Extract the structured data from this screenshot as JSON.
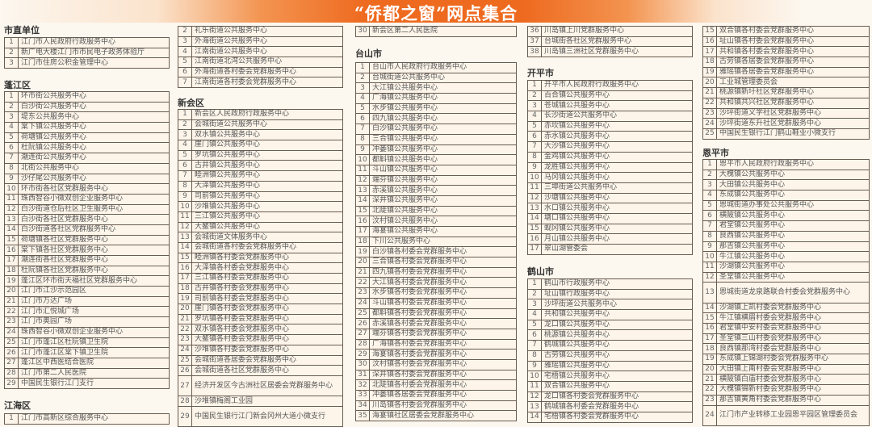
{
  "title": "“侨都之窗”网点集合",
  "columns": [
    [
      {
        "heading": "市直单位",
        "rows": [
          [
            "1",
            "江门市人民政府行政服务中心"
          ],
          [
            "2",
            "新广电大楼江门市市民电子政务体验厅"
          ],
          [
            "3",
            "江门市住房公积金管理中心"
          ]
        ]
      },
      {
        "heading": "蓬江区",
        "rows": [
          [
            "1",
            "环市街公共服务中心"
          ],
          [
            "2",
            "白沙街公共服务中心"
          ],
          [
            "3",
            "堤东公共服务中心"
          ],
          [
            "4",
            "棠下镇公共服务中心"
          ],
          [
            "5",
            "荷塘镇公共服务中心"
          ],
          [
            "6",
            "杜阮镇公共服务中心"
          ],
          [
            "7",
            "潮连街公共服务中心"
          ],
          [
            "8",
            "北街公共服务中心"
          ],
          [
            "9",
            "沙仔尾公共服务中心"
          ],
          [
            "10",
            "环市街各社区党群服务中心"
          ],
          [
            "11",
            "珠西智谷小微双创企业服务中心"
          ],
          [
            "12",
            "白沙街道仓后社区卫生服务中心"
          ],
          [
            "13",
            "白沙街各社区党群服务中心"
          ],
          [
            "14",
            "白沙街道各社区党群服务中心"
          ],
          [
            "15",
            "荷塘镇各社区党群服务中心"
          ],
          [
            "16",
            "棠下镇各社区党群服务中心"
          ],
          [
            "17",
            "潮连街各社区党群服务中心"
          ],
          [
            "18",
            "杜阮镇各社区党群服务中心"
          ],
          [
            "19",
            "蓬江区环市街天福社区党群服务中心"
          ],
          [
            "20",
            "江门市江沙示范园区"
          ],
          [
            "21",
            "江门市万达广场"
          ],
          [
            "22",
            "江门市汇悦城广场"
          ],
          [
            "23",
            "江门市奥园广场"
          ],
          [
            "24",
            "珠西智谷小微双创企业服务中心"
          ],
          [
            "25",
            "江门市蓬江区杜阮镇卫生院"
          ],
          [
            "26",
            "江门市蓬江区棠下镇卫生院"
          ],
          [
            "27",
            "蓬江区中西医结合医院"
          ],
          [
            "28",
            "江门市第二人民医院"
          ],
          [
            "29",
            "中国民生银行江门支行"
          ]
        ]
      },
      {
        "heading": "江海区",
        "rows": [
          [
            "1",
            "江门市高新区综合服务中心"
          ]
        ]
      }
    ],
    [
      {
        "heading": "",
        "rows": [
          [
            "2",
            "礼乐街道公共服务中心"
          ],
          [
            "3",
            "外海街道公共服务中心"
          ],
          [
            "4",
            "江南街道公共服务中心"
          ],
          [
            "5",
            "江南街道北湾公共服务中心"
          ],
          [
            "6",
            "外海街道各村委会党群服务中心"
          ],
          [
            "7",
            "江南街道各村委会党群服务中心"
          ]
        ]
      },
      {
        "heading": "新会区",
        "rows": [
          [
            "1",
            "新会区人民政府行政服务中心"
          ],
          [
            "2",
            "会城街道公共服务中心"
          ],
          [
            "3",
            "双水镇公共服务中心"
          ],
          [
            "4",
            "崖门镇公共服务中心"
          ],
          [
            "5",
            "罗坑镇公共服务中心"
          ],
          [
            "6",
            "古井镇公共服务中心"
          ],
          [
            "7",
            "睦洲镇公共服务中心"
          ],
          [
            "8",
            "大泽镇公共服务中心"
          ],
          [
            "9",
            "司前镇公共服务中心"
          ],
          [
            "10",
            "沙堆镇公共服务中心"
          ],
          [
            "11",
            "三江镇公共服务中心"
          ],
          [
            "12",
            "大鳌镇公共服务中心"
          ],
          [
            "13",
            "会城街道文体服务中心"
          ],
          [
            "14",
            "会城街道各村委会党群服务中心"
          ],
          [
            "15",
            "睦洲镇各村委会党群服务中心"
          ],
          [
            "16",
            "大泽镇各村委会党群服务中心"
          ],
          [
            "17",
            "三江镇各村委会党群服务中心"
          ],
          [
            "18",
            "古井镇各村委会党群服务中心"
          ],
          [
            "19",
            "司前镇各村委会党群服务中心"
          ],
          [
            "20",
            "崖门镇各村委会党群服务中心"
          ],
          [
            "21",
            "罗坑镇各村委会党群服务中心"
          ],
          [
            "22",
            "双水镇各村委会党群服务中心"
          ],
          [
            "23",
            "大鳌镇各村委会党群服务中心"
          ],
          [
            "24",
            "沙堆镇各村委会党群服务中心"
          ],
          [
            "25",
            "会城街道各居委会党群服务中心"
          ],
          [
            "26",
            "会城街道各社区党群服务中心"
          ],
          [
            "27",
            "经济开发区今古洲社区居委会党群服务中心"
          ],
          [
            "28",
            "沙堆镇梅阁工业园"
          ],
          [
            "29",
            "中国民生银行江门新会冈州大道小微支行"
          ]
        ]
      }
    ],
    [
      {
        "heading": "",
        "rows": [
          [
            "30",
            "新会区第二人民医院"
          ]
        ]
      },
      {
        "heading": "台山市",
        "rows": [
          [
            "1",
            "台山市人民政府行政服务中心"
          ],
          [
            "2",
            "台城街道公共服务中心"
          ],
          [
            "3",
            "大江镇公共服务中心"
          ],
          [
            "4",
            "广海镇公共服务中心"
          ],
          [
            "5",
            "水步镇公共服务中心"
          ],
          [
            "6",
            "四九镇公共服务中心"
          ],
          [
            "7",
            "白沙镇公共服务中心"
          ],
          [
            "8",
            "三合镇公共服务中心"
          ],
          [
            "9",
            "冲蒌镇公共服务中心"
          ],
          [
            "10",
            "都斛镇公共服务中心"
          ],
          [
            "11",
            "斗山镇公共服务中心"
          ],
          [
            "12",
            "端芬镇公共服务中心"
          ],
          [
            "13",
            "赤溪镇公共服务中心"
          ],
          [
            "14",
            "深井镇公共服务中心"
          ],
          [
            "15",
            "北陡镇公共服务中心"
          ],
          [
            "16",
            "汶村镇公共服务中心"
          ],
          [
            "17",
            "海宴镇公共服务中心"
          ],
          [
            "18",
            "下川公共服务中心"
          ],
          [
            "19",
            "白沙镇各村委会党群服务中心"
          ],
          [
            "20",
            "三合镇各村委会党群服务中心"
          ],
          [
            "21",
            "四九镇各村委会党群服务中心"
          ],
          [
            "22",
            "大江镇各村委会党群服务中心"
          ],
          [
            "23",
            "水步镇各村委会党群服务中心"
          ],
          [
            "24",
            "斗山镇各村委会党群服务中心"
          ],
          [
            "25",
            "都斛镇各村委会党群服务中心"
          ],
          [
            "26",
            "赤溪镇各村委会党群服务中心"
          ],
          [
            "27",
            "端芬镇各村委会党群服务中心"
          ],
          [
            "28",
            "广海镇各村委会党群服务中心"
          ],
          [
            "29",
            "海宴镇各村委会党群服务中心"
          ],
          [
            "30",
            "汶村镇各村委会党群服务中心"
          ],
          [
            "31",
            "深井镇各村委会党群服务中心"
          ],
          [
            "32",
            "北陡镇各村委会党群服务中心"
          ],
          [
            "33",
            "冲蒌镇各居委会党群服务中心"
          ],
          [
            "34",
            "川岛镇各村委会党群服务中心"
          ],
          [
            "35",
            "海宴镇社区居委会党群服务中心"
          ]
        ]
      }
    ],
    [
      {
        "heading": "",
        "rows": [
          [
            "36",
            "川岛镇上川党群服务中心"
          ],
          [
            "37",
            "台城街各社区党群服务中心"
          ],
          [
            "38",
            "川岛镇三洲社区党群服务中心"
          ]
        ]
      },
      {
        "heading": "开平市",
        "rows": [
          [
            "1",
            "开平市人民政府行政服务中心"
          ],
          [
            "2",
            "百合镇公共服务中心"
          ],
          [
            "3",
            "苍城镇公共服务中心"
          ],
          [
            "4",
            "长沙街道公共服务中心"
          ],
          [
            "5",
            "赤坎镇公共服务中心"
          ],
          [
            "6",
            "赤水镇公共服务中心"
          ],
          [
            "7",
            "大沙镇公共服务中心"
          ],
          [
            "8",
            "金鸡镇公共服务中心"
          ],
          [
            "9",
            "龙胜镇公共服务中心"
          ],
          [
            "10",
            "马冈镇公共服务中心"
          ],
          [
            "11",
            "三埠街道公共服务中心"
          ],
          [
            "12",
            "沙塘镇公共服务中心"
          ],
          [
            "13",
            "水口镇公共服务中心"
          ],
          [
            "14",
            "塘口镇公共服务中心"
          ],
          [
            "15",
            "蚬冈镇公共服务中心"
          ],
          [
            "16",
            "月山镇公共服务中心"
          ],
          [
            "17",
            "翠山湖管委会"
          ]
        ]
      },
      {
        "heading": "鹤山市",
        "rows": [
          [
            "1",
            "鹤山市行政服务中心"
          ],
          [
            "2",
            "址山镇行政服务中心"
          ],
          [
            "3",
            "沙坪街道公共服务中心"
          ],
          [
            "4",
            "共和镇公共服务中心"
          ],
          [
            "5",
            "龙口镇公共服务中心"
          ],
          [
            "6",
            "桃源镇公共服务中心"
          ],
          [
            "7",
            "鹤城镇公共服务中心"
          ],
          [
            "8",
            "古劳镇公共服务中心"
          ],
          [
            "9",
            "雅瑶镇公共服务中心"
          ],
          [
            "10",
            "宅梧镇公共服务中心"
          ],
          [
            "11",
            "双合镇公共服务中心"
          ],
          [
            "12",
            "龙口镇各村委会党群服务中心"
          ],
          [
            "13",
            "鹤城镇各村委会党群服务中心"
          ],
          [
            "14",
            "宅梧镇各村委会党群服务中心"
          ]
        ]
      }
    ],
    [
      {
        "heading": "",
        "rows": [
          [
            "15",
            "双合镇各村委会党群服务中心"
          ],
          [
            "16",
            "址山镇各村委会党群服务中心"
          ],
          [
            "17",
            "共和镇各村委会党群服务中心"
          ],
          [
            "18",
            "古劳镇各居委会党群服务中心"
          ],
          [
            "19",
            "雅瑶镇各居委会党群服务中心"
          ],
          [
            "20",
            "工业城管理委员会"
          ],
          [
            "21",
            "桃源镇新圩社区党群服务中心"
          ],
          [
            "22",
            "共和镇共兴社区党群服务中心"
          ],
          [
            "23",
            "沙坪街道义学社区党群服务中心"
          ],
          [
            "24",
            "沙坪街道东升社区党群服务中心"
          ],
          [
            "25",
            "中国民生银行江门鹤山鞋业小微支行"
          ]
        ]
      },
      {
        "heading": "恩平市",
        "rows": [
          [
            "1",
            "恩平市人民政府行政服务中心"
          ],
          [
            "2",
            "大槐镇公共服务中心"
          ],
          [
            "3",
            "大田镇公共服务中心"
          ],
          [
            "4",
            "东成镇公共服务中心"
          ],
          [
            "5",
            "恩城街道办事处公共服务中心"
          ],
          [
            "6",
            "横陂镇公共服务中心"
          ],
          [
            "7",
            "君堂镇公共服务中心"
          ],
          [
            "8",
            "良西镇公共服务中心"
          ],
          [
            "9",
            "那吉镇公共服务中心"
          ],
          [
            "10",
            "牛江镇公共服务中心"
          ],
          [
            "11",
            "沙湖镇公共服务中心"
          ],
          [
            "12",
            "圣堂镇公共服务中心"
          ],
          [
            "13",
            "恩城街道龙泉路联合村委会党群服务中心"
          ],
          [
            "14",
            "沙湖镇上凯村委会党群服务中心"
          ],
          [
            "15",
            "牛江镇横眉村委会党群服务中心"
          ],
          [
            "16",
            "君堂镇中安村委会党群服务中心"
          ],
          [
            "17",
            "圣堂镇三山村委会党群服务中心"
          ],
          [
            "18",
            "良西镇那湾村委会党群服务中心"
          ],
          [
            "19",
            "东成镇上锦湖村委会党群服务中心"
          ],
          [
            "20",
            "大田镇上南村委会党群服务中心"
          ],
          [
            "21",
            "横陂镇白庙村委会党群服务中心"
          ],
          [
            "22",
            "大槐镇锦新村委会党群服务中心"
          ],
          [
            "23",
            "那吉镇黄角村委会党群服务中心"
          ],
          [
            "24",
            "江门市产业转移工业园恩平园区管理委员会"
          ]
        ]
      }
    ]
  ]
}
